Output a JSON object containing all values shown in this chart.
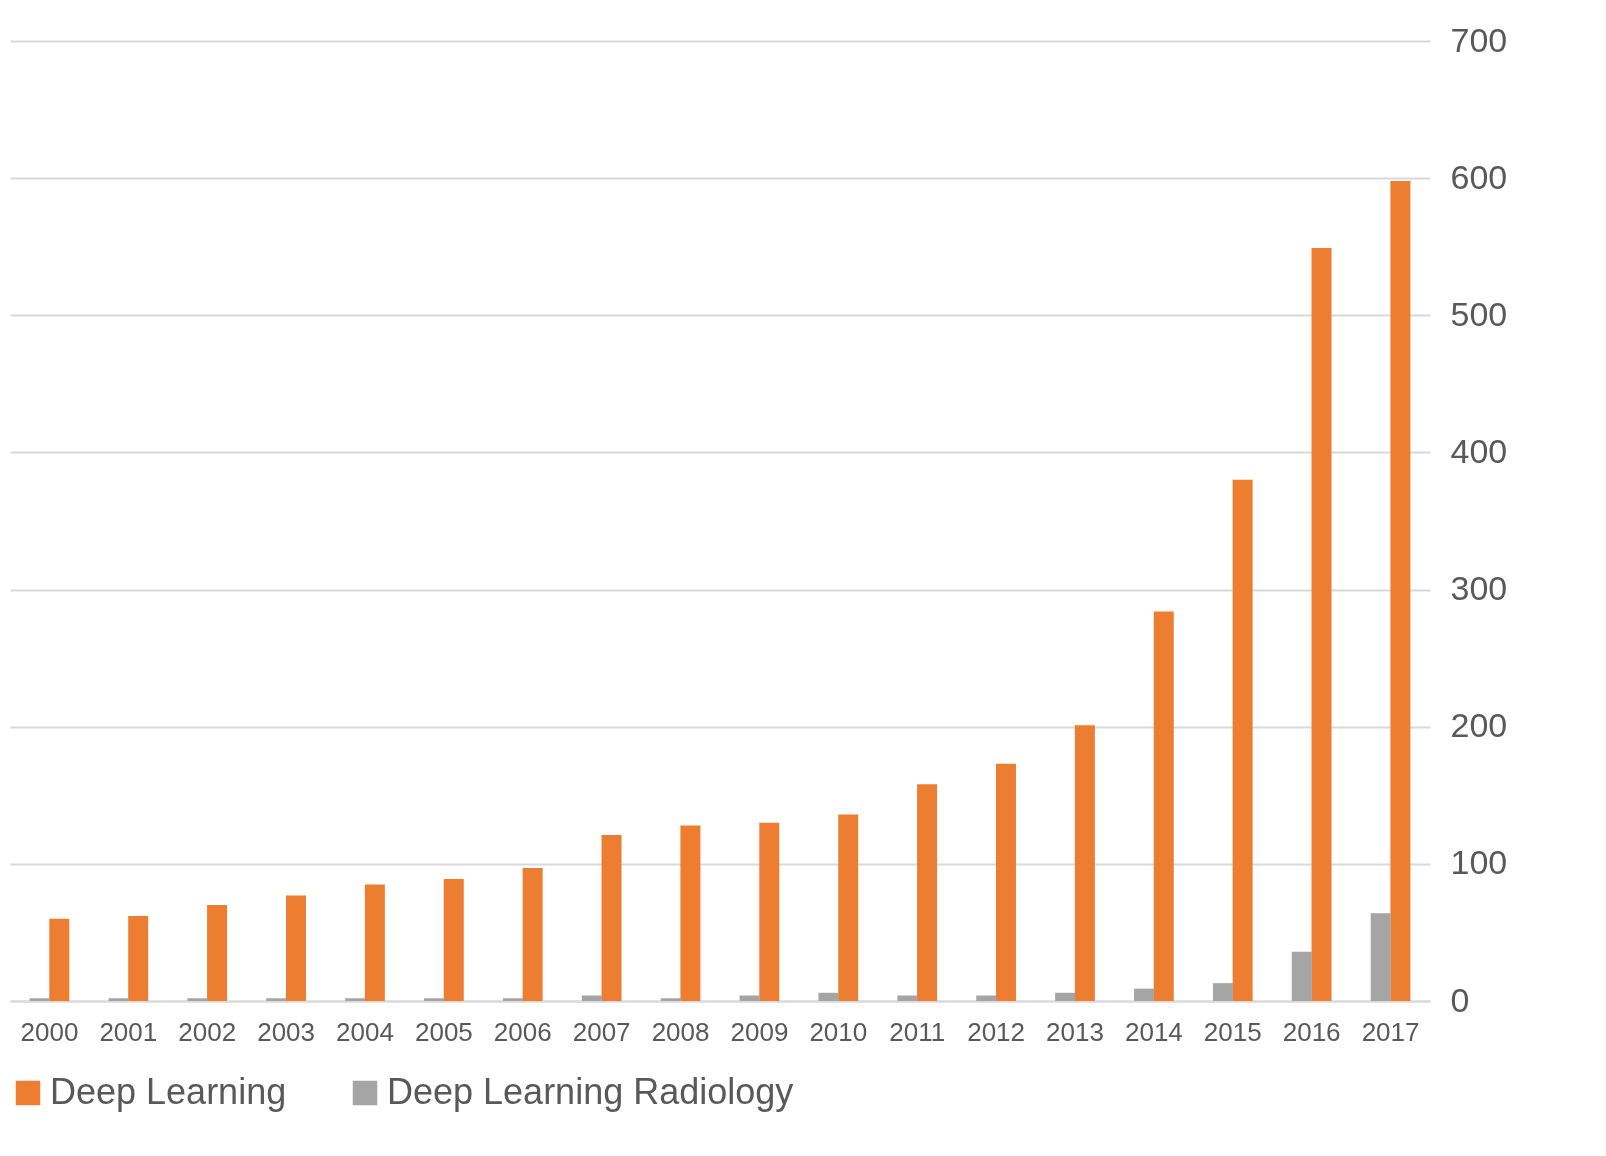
{
  "chart_data": {
    "type": "bar",
    "categories": [
      "2000",
      "2001",
      "2002",
      "2003",
      "2004",
      "2005",
      "2006",
      "2007",
      "2008",
      "2009",
      "2010",
      "2011",
      "2012",
      "2013",
      "2014",
      "2015",
      "2016",
      "2017"
    ],
    "series": [
      {
        "name": "Deep Learning",
        "color": "#ed7d31",
        "values": [
          60,
          62,
          70,
          77,
          85,
          89,
          97,
          121,
          128,
          130,
          136,
          158,
          173,
          201,
          284,
          380,
          549,
          598
        ]
      },
      {
        "name": "Deep Learning Radiology",
        "color": "#a5a5a5",
        "values": [
          2,
          2,
          2,
          2,
          2,
          2,
          2,
          4,
          2,
          4,
          6,
          4,
          4,
          6,
          9,
          13,
          36,
          64
        ]
      }
    ],
    "ylim": [
      0,
      700
    ],
    "yticks": [
      0,
      100,
      200,
      300,
      400,
      500,
      600,
      700
    ],
    "grid": "y",
    "legend": "bottom"
  }
}
